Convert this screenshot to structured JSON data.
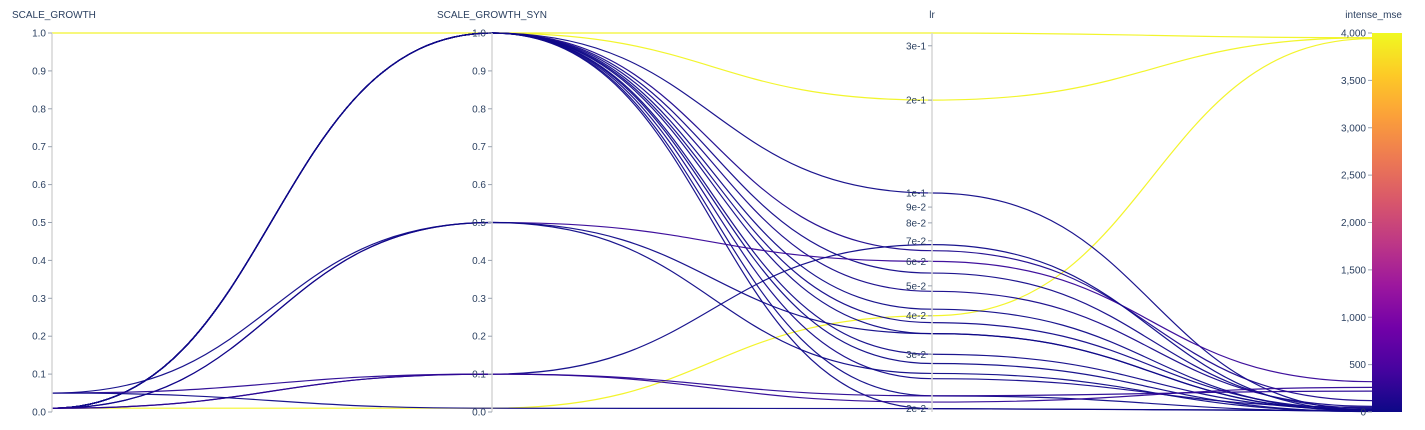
{
  "chart_data": {
    "type": "parallel_coordinates",
    "dimensions": [
      {
        "key": "s",
        "label": "SCALE_GROWTH",
        "scale": "linear",
        "range": [
          0,
          1
        ],
        "ticks": [
          0,
          0.1,
          0.2,
          0.3,
          0.4,
          0.5,
          0.6,
          0.7,
          0.8,
          0.9,
          1
        ],
        "tick_labels": [
          "0.0",
          "0.1",
          "0.2",
          "0.3",
          "0.4",
          "0.5",
          "0.6",
          "0.7",
          "0.8",
          "0.9",
          "1.0"
        ]
      },
      {
        "key": "ss",
        "label": "SCALE_GROWTH_SYN",
        "scale": "linear",
        "range": [
          0,
          1
        ],
        "ticks": [
          0,
          0.1,
          0.2,
          0.3,
          0.4,
          0.5,
          0.6,
          0.7,
          0.8,
          0.9,
          1
        ],
        "tick_labels": [
          "0.0",
          "0.1",
          "0.2",
          "0.3",
          "0.4",
          "0.5",
          "0.6",
          "0.7",
          "0.8",
          "0.9",
          "1.0"
        ]
      },
      {
        "key": "lr",
        "label": "lr",
        "scale": "log",
        "range": [
          0.0195,
          0.33
        ],
        "ticks": [
          0.02,
          0.03,
          0.04,
          0.05,
          0.06,
          0.07,
          0.08,
          0.09,
          0.1,
          0.2,
          0.3
        ],
        "tick_labels": [
          "2e-2",
          "3e-2",
          "4e-2",
          "5e-2",
          "6e-2",
          "7e-2",
          "8e-2",
          "9e-2",
          "1e-1",
          "2e-1",
          "3e-1"
        ]
      },
      {
        "key": "m",
        "label": "intense_mse",
        "scale": "linear",
        "range": [
          0,
          4000
        ],
        "ticks": [
          0,
          500,
          1000,
          1500,
          2000,
          2500,
          3000,
          3500,
          4000
        ],
        "tick_labels": [
          "0",
          "500",
          "1,000",
          "1,500",
          "2,000",
          "2,500",
          "3,000",
          "3,500",
          "4,000"
        ]
      }
    ],
    "colorscale": {
      "dimension": "intense_mse",
      "range": [
        0,
        4000
      ],
      "stops": [
        "#0d0887",
        "#46039f",
        "#7201a8",
        "#9c179e",
        "#bd3786",
        "#d8576b",
        "#ed7953",
        "#fb9f3a",
        "#fdca26",
        "#f0f921"
      ]
    },
    "records": [
      {
        "s": 0.01,
        "ss": 1.0,
        "lr": 0.33,
        "m": 3950
      },
      {
        "s": 1.0,
        "ss": 1.0,
        "lr": 0.2,
        "m": 3950
      },
      {
        "s": 0.01,
        "ss": 0.01,
        "lr": 0.04,
        "m": 3940
      },
      {
        "s": 0.01,
        "ss": 1.0,
        "lr": 0.1,
        "m": 20
      },
      {
        "s": 0.01,
        "ss": 1.0,
        "lr": 0.065,
        "m": 120
      },
      {
        "s": 0.01,
        "ss": 1.0,
        "lr": 0.055,
        "m": 40
      },
      {
        "s": 0.01,
        "ss": 1.0,
        "lr": 0.048,
        "m": 60
      },
      {
        "s": 0.01,
        "ss": 1.0,
        "lr": 0.042,
        "m": 10
      },
      {
        "s": 0.01,
        "ss": 1.0,
        "lr": 0.038,
        "m": 30
      },
      {
        "s": 0.01,
        "ss": 1.0,
        "lr": 0.035,
        "m": 15
      },
      {
        "s": 0.01,
        "ss": 1.0,
        "lr": 0.03,
        "m": 25
      },
      {
        "s": 0.01,
        "ss": 1.0,
        "lr": 0.028,
        "m": 5
      },
      {
        "s": 0.01,
        "ss": 1.0,
        "lr": 0.025,
        "m": 50
      },
      {
        "s": 0.01,
        "ss": 1.0,
        "lr": 0.022,
        "m": 8
      },
      {
        "s": 0.01,
        "ss": 1.0,
        "lr": 0.02,
        "m": 12
      },
      {
        "s": 0.01,
        "ss": 0.5,
        "lr": 0.06,
        "m": 320
      },
      {
        "s": 0.05,
        "ss": 0.5,
        "lr": 0.035,
        "m": 18
      },
      {
        "s": 0.01,
        "ss": 0.5,
        "lr": 0.026,
        "m": 6
      },
      {
        "s": 0.01,
        "ss": 0.1,
        "lr": 0.068,
        "m": 10
      },
      {
        "s": 0.05,
        "ss": 0.1,
        "lr": 0.022,
        "m": 220
      },
      {
        "s": 0.01,
        "ss": 0.1,
        "lr": 0.021,
        "m": 260
      },
      {
        "s": 0.05,
        "ss": 0.01,
        "lr": 0.02,
        "m": 15
      }
    ]
  }
}
